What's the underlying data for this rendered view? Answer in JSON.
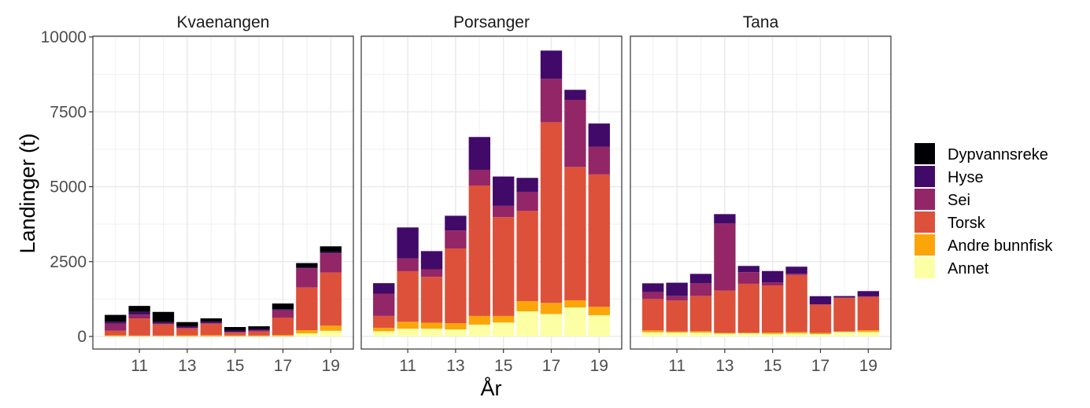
{
  "chart_data": {
    "type": "bar",
    "stacked": true,
    "facet_by": "area",
    "xlabel": "År",
    "ylabel": "Landinger (t)",
    "ylim": [
      0,
      10000
    ],
    "yticks": [
      0,
      2500,
      5000,
      7500,
      10000
    ],
    "xticks": [
      11,
      13,
      15,
      17,
      19
    ],
    "xlim": [
      9.055,
      19.945
    ],
    "grid": true,
    "legend_position": "right",
    "x": [
      10,
      11,
      12,
      13,
      14,
      15,
      16,
      17,
      18,
      19
    ],
    "stack_order": [
      "Annet",
      "Andre bunnfisk",
      "Torsk",
      "Sei",
      "Hyse",
      "Dypvannsreke"
    ],
    "legend": [
      {
        "name": "Dypvannsreke",
        "color": "#000004"
      },
      {
        "name": "Hyse",
        "color": "#420A68"
      },
      {
        "name": "Sei",
        "color": "#932667"
      },
      {
        "name": "Torsk",
        "color": "#DD513A"
      },
      {
        "name": "Andre bunnfisk",
        "color": "#FCA50A"
      },
      {
        "name": "Annet",
        "color": "#FCFFA4"
      }
    ],
    "panels": [
      {
        "title": "Kvaenangen",
        "series": [
          {
            "name": "Annet",
            "values": [
              10,
              10,
              10,
              5,
              5,
              5,
              5,
              10,
              105,
              190
            ]
          },
          {
            "name": "Andre bunnfisk",
            "values": [
              30,
              20,
              20,
              35,
              40,
              30,
              30,
              40,
              105,
              170
            ]
          },
          {
            "name": "Torsk",
            "values": [
              150,
              570,
              380,
              230,
              380,
              90,
              130,
              580,
              1425,
              1775
            ]
          },
          {
            "name": "Sei",
            "values": [
              240,
              130,
              20,
              20,
              20,
              30,
              45,
              245,
              640,
              645
            ]
          },
          {
            "name": "Hyse",
            "values": [
              60,
              90,
              50,
              50,
              50,
              40,
              40,
              35,
              35,
              35
            ]
          },
          {
            "name": "Dypvannsreke",
            "values": [
              230,
              200,
              340,
              140,
              110,
              120,
              90,
              190,
              140,
              195
            ]
          }
        ]
      },
      {
        "title": "Porsanger",
        "series": [
          {
            "name": "Annet",
            "values": [
              175,
              260,
              260,
              235,
              395,
              465,
              840,
              750,
              970,
              710
            ]
          },
          {
            "name": "Andre bunnfisk",
            "values": [
              115,
              230,
              200,
              210,
              290,
              220,
              340,
              370,
              235,
              280
            ]
          },
          {
            "name": "Torsk",
            "values": [
              395,
              1690,
              1530,
              2495,
              4355,
              3300,
              3010,
              6035,
              4455,
              4420
            ]
          },
          {
            "name": "Sei",
            "values": [
              745,
              430,
              255,
              600,
              525,
              375,
              640,
              1445,
              2240,
              920
            ]
          },
          {
            "name": "Hyse",
            "values": [
              350,
              1030,
              605,
              490,
              1095,
              980,
              465,
              945,
              335,
              780
            ]
          },
          {
            "name": "Dypvannsreke",
            "values": [
              0,
              0,
              0,
              0,
              0,
              0,
              0,
              0,
              0,
              0
            ]
          }
        ]
      },
      {
        "title": "Tana",
        "series": [
          {
            "name": "Annet",
            "values": [
              140,
              130,
              130,
              95,
              105,
              85,
              105,
              80,
              150,
              150
            ]
          },
          {
            "name": "Andre bunnfisk",
            "values": [
              60,
              35,
              45,
              25,
              20,
              45,
              45,
              40,
              15,
              60
            ]
          },
          {
            "name": "Torsk",
            "values": [
              1050,
              1035,
              1180,
              1410,
              1635,
              1575,
              1900,
              945,
              1120,
              1110
            ]
          },
          {
            "name": "Sei",
            "values": [
              235,
              155,
              420,
              2240,
              385,
              105,
              45,
              10,
              20,
              20
            ]
          },
          {
            "name": "Hyse",
            "values": [
              290,
              440,
              315,
              315,
              210,
              375,
              235,
              270,
              45,
              175
            ]
          },
          {
            "name": "Dypvannsreke",
            "values": [
              0,
              0,
              0,
              0,
              0,
              0,
              0,
              0,
              0,
              0
            ]
          }
        ]
      }
    ]
  }
}
